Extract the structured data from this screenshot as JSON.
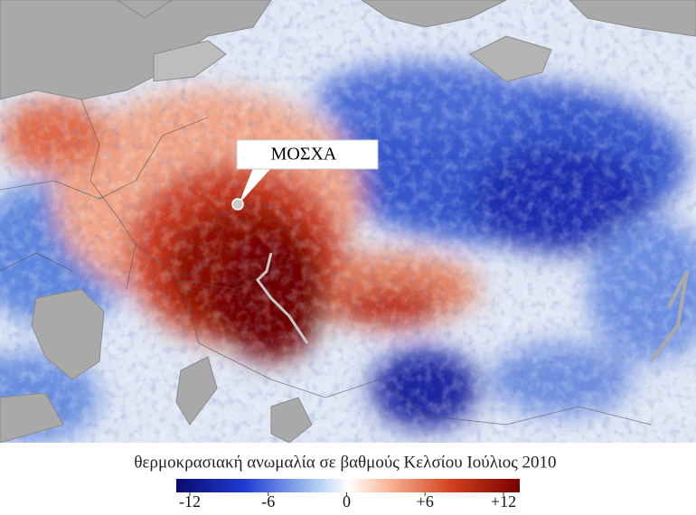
{
  "map": {
    "label": "ΜΟΣΧΑ",
    "caption": "θερμοκρασιακή ανωμαλία σε βαθμούς Κελσίου Ιούλιος 2010",
    "colorbar": {
      "range": [
        -12,
        12
      ],
      "ticks": [
        -12,
        -6,
        0,
        {
          "value": 6,
          "label": "+6"
        },
        {
          "value": 12,
          "label": "+12"
        }
      ]
    }
  }
}
